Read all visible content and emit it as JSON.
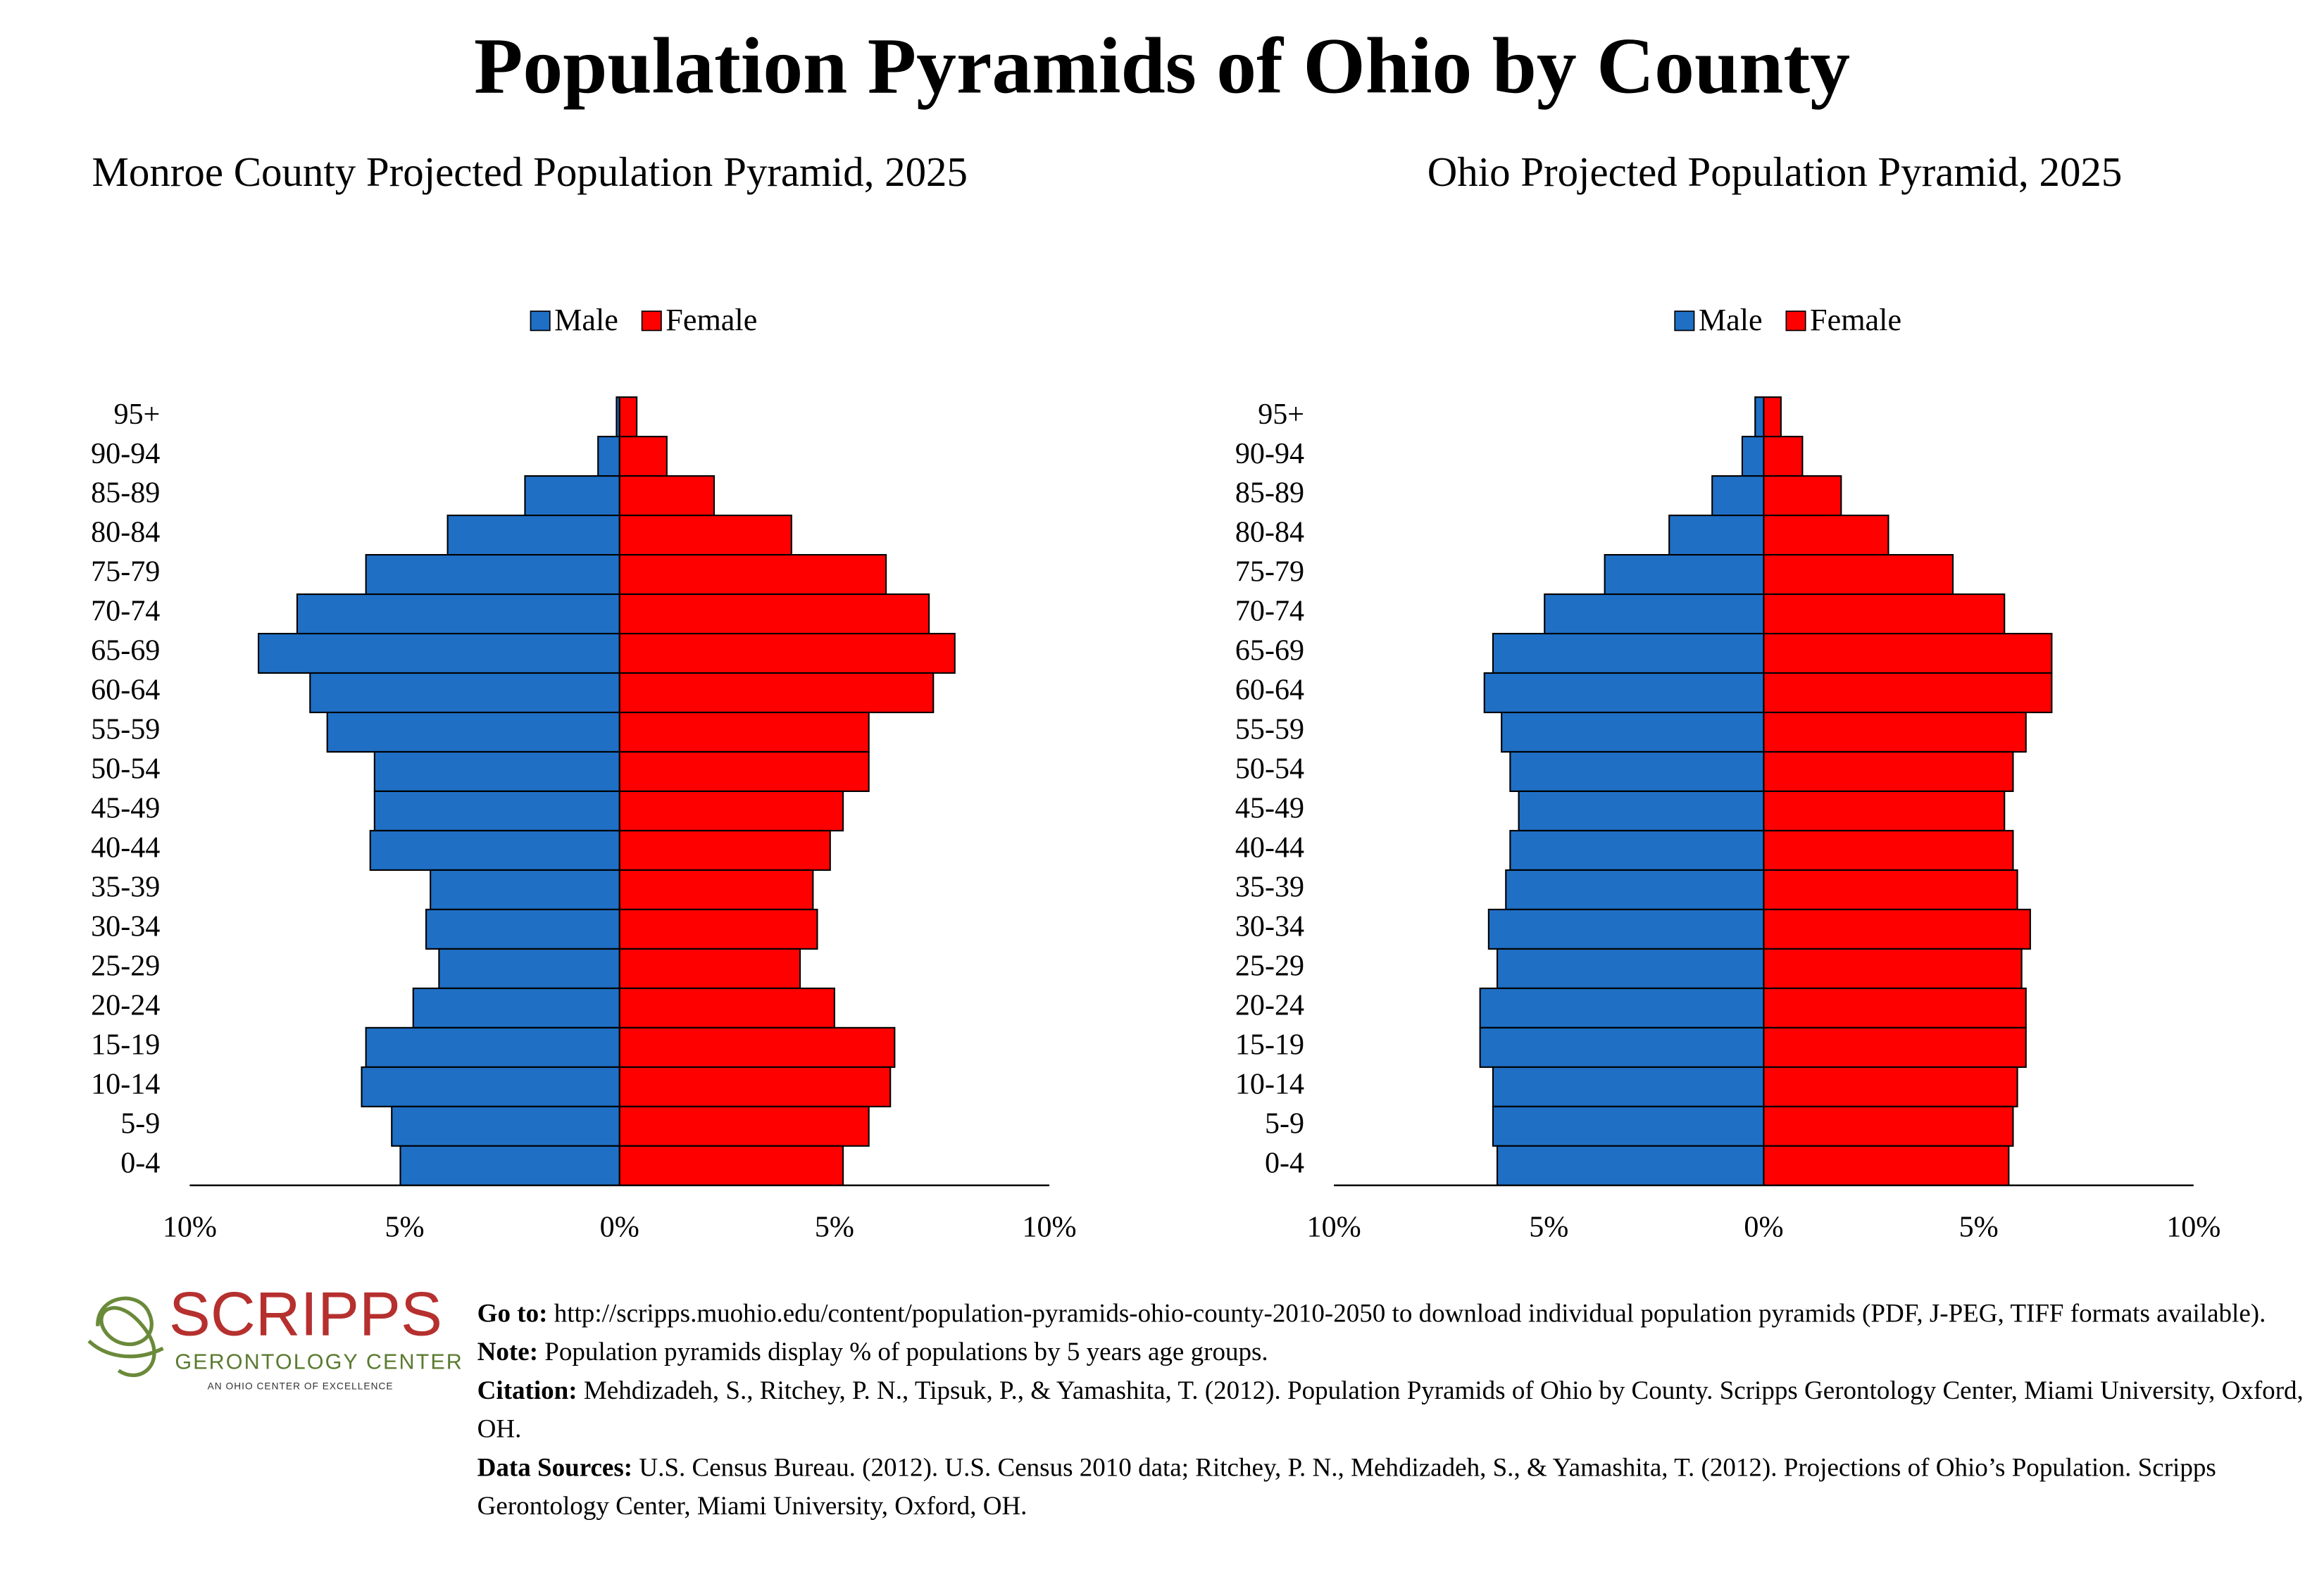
{
  "title": "Population Pyramids of Ohio by County",
  "chart_data": [
    {
      "type": "pyramid",
      "title": "Monroe County Projected Population Pyramid, 2025",
      "categories": [
        "95+",
        "90-94",
        "85-89",
        "80-84",
        "75-79",
        "70-74",
        "65-69",
        "60-64",
        "55-59",
        "50-54",
        "45-49",
        "40-44",
        "35-39",
        "30-34",
        "25-29",
        "20-24",
        "15-19",
        "10-14",
        "5-9",
        "0-4"
      ],
      "series": [
        {
          "name": "Male",
          "color": "#1f6fc5",
          "side": "left",
          "values": [
            0.07,
            0.5,
            2.2,
            4.0,
            5.9,
            7.5,
            8.4,
            7.2,
            6.8,
            5.7,
            5.7,
            5.8,
            4.4,
            4.5,
            4.2,
            4.8,
            5.9,
            6.0,
            5.3,
            5.1
          ]
        },
        {
          "name": "Female",
          "color": "#ff0000",
          "side": "right",
          "values": [
            0.4,
            1.1,
            2.2,
            4.0,
            6.2,
            7.2,
            7.8,
            7.3,
            5.8,
            5.8,
            5.2,
            4.9,
            4.5,
            4.6,
            4.2,
            5.0,
            6.4,
            6.3,
            5.8,
            5.2
          ]
        }
      ],
      "xlim": [
        -10,
        10
      ],
      "xticks": [
        {
          "value": -10,
          "label": "10%"
        },
        {
          "value": -5,
          "label": "5%"
        },
        {
          "value": 0,
          "label": "0%"
        },
        {
          "value": 5,
          "label": "5%"
        },
        {
          "value": 10,
          "label": "10%"
        }
      ],
      "legend": "top"
    },
    {
      "type": "pyramid",
      "title": "Ohio Projected Population Pyramid, 2025",
      "categories": [
        "95+",
        "90-94",
        "85-89",
        "80-84",
        "75-79",
        "70-74",
        "65-69",
        "60-64",
        "55-59",
        "50-54",
        "45-49",
        "40-44",
        "35-39",
        "30-34",
        "25-29",
        "20-24",
        "15-19",
        "10-14",
        "5-9",
        "0-4"
      ],
      "series": [
        {
          "name": "Male",
          "color": "#1f6fc5",
          "side": "left",
          "values": [
            0.2,
            0.5,
            1.2,
            2.2,
            3.7,
            5.1,
            6.3,
            6.5,
            6.1,
            5.9,
            5.7,
            5.9,
            6.0,
            6.4,
            6.2,
            6.6,
            6.6,
            6.3,
            6.3,
            6.2
          ]
        },
        {
          "name": "Female",
          "color": "#ff0000",
          "side": "right",
          "values": [
            0.4,
            0.9,
            1.8,
            2.9,
            4.4,
            5.6,
            6.7,
            6.7,
            6.1,
            5.8,
            5.6,
            5.8,
            5.9,
            6.2,
            6.0,
            6.1,
            6.1,
            5.9,
            5.8,
            5.7
          ]
        }
      ],
      "xlim": [
        -10,
        10
      ],
      "xticks": [
        {
          "value": -10,
          "label": "10%"
        },
        {
          "value": -5,
          "label": "5%"
        },
        {
          "value": 0,
          "label": "0%"
        },
        {
          "value": 5,
          "label": "5%"
        },
        {
          "value": 10,
          "label": "10%"
        }
      ],
      "legend": "top"
    }
  ],
  "footer": {
    "logo": {
      "name": "SCRIPPS",
      "subtitle": "GERONTOLOGY CENTER",
      "tagline": "AN OHIO CENTER OF EXCELLENCE"
    },
    "notes": [
      {
        "label": "Go to:",
        "text": "http://scripps.muohio.edu/content/population-pyramids-ohio-county-2010-2050 to download individual population pyramids (PDF, J-PEG, TIFF formats available)."
      },
      {
        "label": "Note:",
        "text": "Population pyramids display % of populations by 5 years age groups."
      },
      {
        "label": "Citation:",
        "text": "Mehdizadeh, S., Ritchey, P. N., Tipsuk, P., & Yamashita, T. (2012). Population Pyramids of Ohio by County. Scripps Gerontology Center, Miami University, Oxford, OH."
      },
      {
        "label": "Data Sources:",
        "text": "U.S. Census Bureau. (2012). U.S. Census 2010 data; Ritchey, P. N., Mehdizadeh, S., & Yamashita, T. (2012). Projections of Ohio’s Population. Scripps Gerontology Center, Miami University, Oxford, OH."
      }
    ]
  }
}
